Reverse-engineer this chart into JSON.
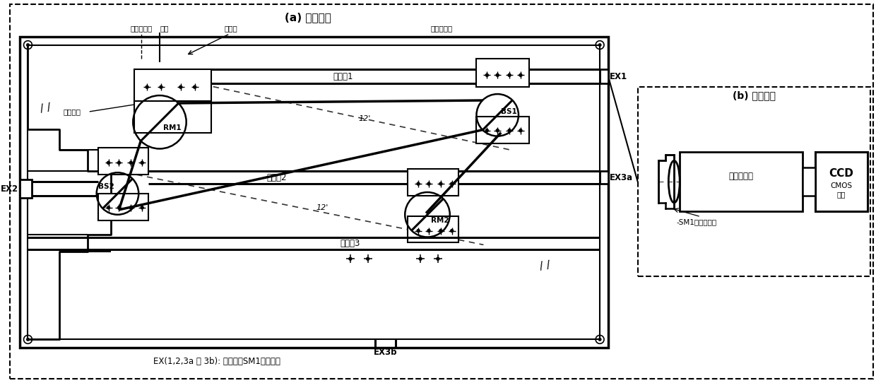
{
  "fig_width": 12.4,
  "fig_height": 5.42,
  "bg_color": "#ffffff",
  "title_a": "(a) 光机装置",
  "title_b": "(b) 标定装置",
  "label_jixie": "机械中心轴",
  "label_guangzhou": "光轴",
  "label_input": "输入孔",
  "label_fenguang": "分光光路盒",
  "label_jinjin": "紧固螺丝",
  "label_ch1": "光通道1",
  "label_ch2": "光通道2",
  "label_ch3": "光通道3",
  "label_RM1": "RM1",
  "label_RM2": "RM2",
  "label_BS1": "BS1",
  "label_BS2": "BS2",
  "label_EX1": "EX1",
  "label_EX2": "EX2",
  "label_EX3a": "EX3a",
  "label_EX3b": "EX3b",
  "label_12deg1": "12'",
  "label_12deg2": "12'",
  "label_xiaoselens": "消色差透镜",
  "label_CCD": "CCD",
  "label_CMOS": "CMOS\n相机",
  "label_SM1": "-SM1外螺纹接口",
  "label_bottom": "EX(1,2,3a 和 3b): 输出孔，SM1内螺纹孔",
  "line_color": "#000000",
  "dash_color": "#555555"
}
